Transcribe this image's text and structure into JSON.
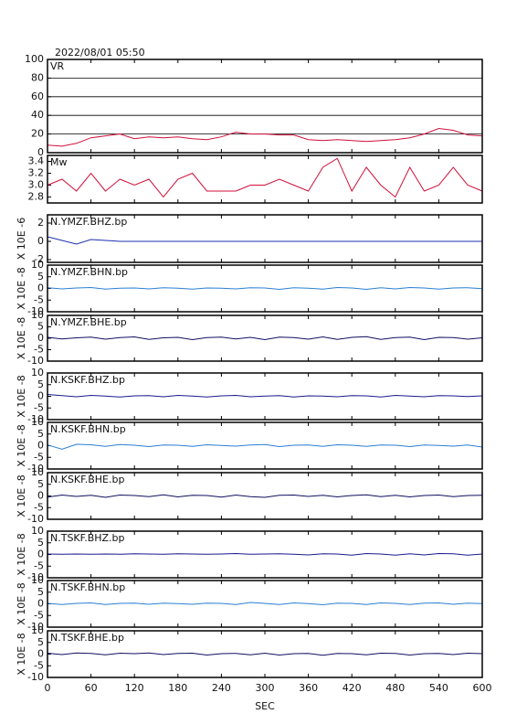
{
  "title": "2022/08/01 05:50",
  "x_label": "SEC",
  "xlim": [
    0,
    600
  ],
  "xticks": [
    0,
    60,
    120,
    180,
    240,
    300,
    360,
    420,
    480,
    540,
    600
  ],
  "x": [
    0,
    20,
    40,
    60,
    80,
    100,
    120,
    140,
    160,
    180,
    200,
    220,
    240,
    260,
    280,
    300,
    320,
    340,
    360,
    380,
    400,
    420,
    440,
    460,
    480,
    500,
    520,
    540,
    560,
    580,
    600
  ],
  "chart_data": [
    {
      "type": "line",
      "ylim": [
        0,
        100
      ],
      "yticks": [
        0,
        20,
        40,
        60,
        80,
        100
      ],
      "grid": true,
      "series": [
        {
          "name": "VR",
          "color": "#d0103a",
          "values": [
            8,
            7,
            10,
            16,
            18,
            20,
            15,
            17,
            16,
            17,
            15,
            14,
            17,
            22,
            20,
            20,
            19,
            19,
            14,
            13,
            14,
            13,
            12,
            13,
            14,
            16,
            20,
            26,
            24,
            19,
            18
          ]
        }
      ]
    },
    {
      "type": "line",
      "ylim": [
        2.7,
        3.5
      ],
      "yticks": [
        2.8,
        {
          "value": 3,
          "label": "3.0"
        },
        3.2,
        3.4
      ],
      "grid": false,
      "series": [
        {
          "name": "Mw",
          "color": "#d0103a",
          "values": [
            3.0,
            3.1,
            2.9,
            3.2,
            2.9,
            3.1,
            3.0,
            3.1,
            2.8,
            3.1,
            3.2,
            2.9,
            2.9,
            2.9,
            3.0,
            3.0,
            3.1,
            3.0,
            2.9,
            3.3,
            3.45,
            2.9,
            3.3,
            3.0,
            2.8,
            3.3,
            2.9,
            3.0,
            3.3,
            3.0,
            2.9
          ]
        }
      ]
    },
    {
      "type": "line",
      "ylim": [
        -2.3,
        2.9
      ],
      "yticks": [
        -2,
        0,
        2
      ],
      "y_label": "X 10E -6",
      "grid": false,
      "series": [
        {
          "name": "N.YMZF.BHZ.bp",
          "color": "#2030b0",
          "values": [
            0.5,
            0.1,
            -0.3,
            0.2,
            0.1,
            0,
            0,
            0,
            0,
            0,
            0,
            0,
            0,
            0,
            0,
            0,
            0,
            0,
            0,
            0,
            0,
            0,
            0,
            0,
            0,
            0,
            0,
            0,
            0,
            0,
            0
          ]
        }
      ]
    },
    {
      "type": "line",
      "ylim": [
        -10,
        10
      ],
      "yticks": [
        -10,
        -5,
        0,
        5,
        10
      ],
      "y_label": "X 10E -8",
      "grid": false,
      "series": [
        {
          "name": "N.YMZF.BHN.bp",
          "color": "#2b7fd4",
          "values": [
            0.3,
            -0.2,
            0.2,
            0.4,
            -0.3,
            0.1,
            0.2,
            -0.2,
            0.3,
            0.1,
            -0.3,
            0.2,
            0.1,
            -0.2,
            0.3,
            0.2,
            -0.4,
            0.3,
            0.1,
            -0.3,
            0.4,
            0.2,
            -0.4,
            0.3,
            -0.2,
            0.4,
            0.2,
            -0.3,
            0.2,
            0.3,
            -0.1
          ]
        }
      ]
    },
    {
      "type": "line",
      "ylim": [
        -10,
        10
      ],
      "yticks": [
        -10,
        -5,
        0,
        5,
        10
      ],
      "y_label": "X 10E -8",
      "grid": false,
      "series": [
        {
          "name": "N.YMZF.BHE.bp",
          "color": "#101060",
          "values": [
            0.4,
            -0.3,
            0.2,
            0.5,
            -0.4,
            0.3,
            0.6,
            -0.5,
            0.2,
            0.4,
            -0.6,
            0.3,
            0.5,
            -0.3,
            0.4,
            -0.6,
            0.5,
            0.3,
            -0.4,
            0.6,
            -0.5,
            0.4,
            0.7,
            -0.5,
            0.3,
            0.5,
            -0.6,
            0.4,
            0.3,
            -0.4,
            0.2
          ]
        }
      ]
    },
    {
      "type": "line",
      "ylim": [
        -10,
        10
      ],
      "yticks": [
        -10,
        -5,
        0,
        5,
        10
      ],
      "y_label": "X 10E -8",
      "grid": false,
      "series": [
        {
          "name": "N.KSKF.BHZ.bp",
          "color": "#1a1a8c",
          "values": [
            0.8,
            0.3,
            -0.2,
            0.4,
            0.1,
            -0.3,
            0.2,
            0.3,
            -0.2,
            0.4,
            0.1,
            -0.3,
            0.2,
            0.4,
            -0.2,
            0.1,
            0.3,
            -0.3,
            0.2,
            0.1,
            -0.2,
            0.3,
            0.2,
            -0.3,
            0.4,
            0.1,
            -0.2,
            0.3,
            0.2,
            -0.1,
            0.2
          ]
        }
      ]
    },
    {
      "type": "line",
      "ylim": [
        -10,
        10
      ],
      "yticks": [
        -10,
        -5,
        0,
        5,
        10
      ],
      "y_label": "X 10E -8",
      "grid": false,
      "series": [
        {
          "name": "N.KSKF.BHN.bp",
          "color": "#2b7fd4",
          "values": [
            0.3,
            -1.5,
            0.6,
            0.4,
            -0.3,
            0.5,
            0.2,
            -0.4,
            0.3,
            0.2,
            -0.3,
            0.4,
            0.1,
            -0.2,
            0.3,
            0.5,
            -0.4,
            0.2,
            0.3,
            -0.3,
            0.4,
            0.2,
            -0.3,
            0.3,
            0.2,
            -0.4,
            0.3,
            0.1,
            -0.2,
            0.3,
            -0.6
          ]
        }
      ]
    },
    {
      "type": "line",
      "ylim": [
        -10,
        10
      ],
      "yticks": [
        -10,
        -5,
        0,
        5,
        10
      ],
      "y_label": "X 10E -8",
      "grid": false,
      "series": [
        {
          "name": "N.KSKF.BHE.bp",
          "color": "#101060",
          "values": [
            -0.5,
            0.4,
            -0.2,
            0.3,
            -0.6,
            0.4,
            0.2,
            -0.3,
            0.5,
            -0.4,
            0.3,
            0.2,
            -0.5,
            0.4,
            -0.3,
            -0.6,
            0.3,
            0.4,
            -0.2,
            0.3,
            -0.4,
            0.2,
            0.5,
            -0.3,
            0.3,
            -0.4,
            0.2,
            0.4,
            -0.3,
            0.2,
            0.3
          ]
        }
      ]
    },
    {
      "type": "line",
      "ylim": [
        -10,
        10
      ],
      "yticks": [
        -10,
        -5,
        0,
        5,
        10
      ],
      "y_label": "X 10E -8",
      "grid": false,
      "series": [
        {
          "name": "N.TSKF.BHZ.bp",
          "color": "#1a1a8c",
          "values": [
            0.2,
            0.1,
            0.2,
            0.1,
            0.2,
            0.1,
            0.3,
            0.2,
            0.1,
            0.3,
            0.2,
            0.1,
            0.2,
            0.4,
            0.1,
            0.2,
            0.3,
            0.1,
            -0.2,
            0.3,
            0.2,
            -0.3,
            0.4,
            0.2,
            -0.3,
            0.3,
            -0.2,
            0.4,
            0.3,
            -0.3,
            0.2
          ]
        }
      ]
    },
    {
      "type": "line",
      "ylim": [
        -10,
        10
      ],
      "yticks": [
        -10,
        -5,
        0,
        5,
        10
      ],
      "y_label": "X 10E -8",
      "grid": false,
      "series": [
        {
          "name": "N.TSKF.BHN.bp",
          "color": "#2b7fd4",
          "values": [
            0.2,
            -0.3,
            0.2,
            0.4,
            -0.3,
            0.2,
            0.3,
            -0.2,
            0.3,
            0.1,
            -0.2,
            0.3,
            0.2,
            -0.3,
            0.6,
            0.2,
            -0.3,
            0.4,
            0.1,
            -0.4,
            0.3,
            0.2,
            -0.3,
            0.4,
            0.2,
            -0.3,
            0.3,
            0.4,
            -0.2,
            0.3,
            0.1
          ]
        }
      ]
    },
    {
      "type": "line",
      "ylim": [
        -10,
        10
      ],
      "yticks": [
        -10,
        -5,
        0,
        5,
        10
      ],
      "y_label": "X 10E -8",
      "grid": false,
      "series": [
        {
          "name": "N.TSKF.BHE.bp",
          "color": "#101060",
          "values": [
            0.4,
            -0.2,
            0.5,
            0.3,
            -0.3,
            0.4,
            0.2,
            0.5,
            -0.2,
            0.3,
            0.4,
            -0.4,
            0.2,
            0.3,
            -0.3,
            0.4,
            -0.4,
            0.2,
            0.3,
            -0.5,
            0.3,
            0.2,
            -0.3,
            0.4,
            0.3,
            -0.4,
            0.2,
            0.3,
            -0.2,
            0.4,
            0.2
          ]
        }
      ]
    }
  ]
}
